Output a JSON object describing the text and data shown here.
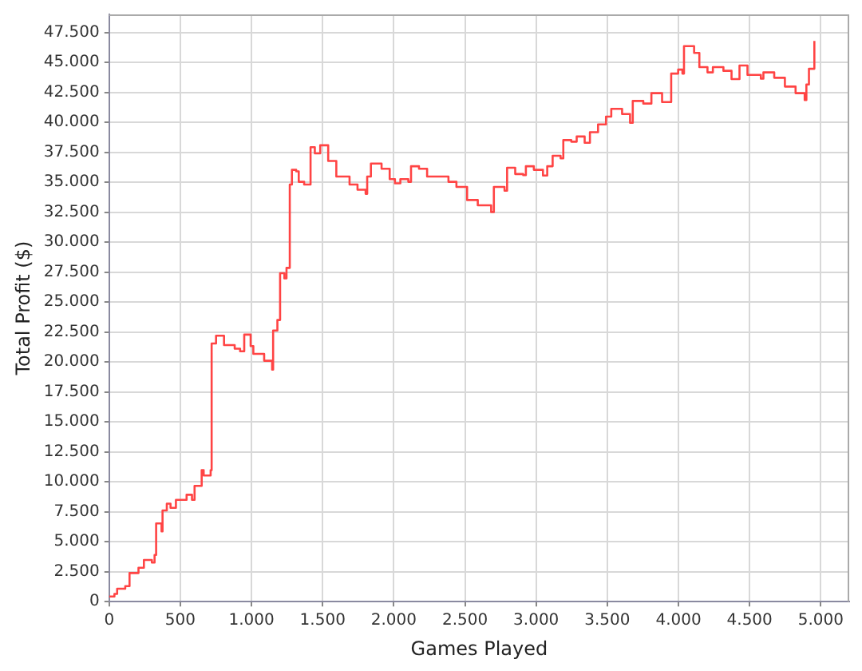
{
  "chart_data": {
    "type": "step",
    "xlabel": "Games Played",
    "ylabel": "Total Profit ($)",
    "xlim": [
      0,
      5200
    ],
    "ylim": [
      0,
      49000
    ],
    "xticks": [
      0,
      500,
      {
        "value": 1000,
        "label": "1.000"
      },
      {
        "value": 1500,
        "label": "1.500"
      },
      {
        "value": 2000,
        "label": "2.000"
      },
      {
        "value": 2500,
        "label": "2.500"
      },
      {
        "value": 3000,
        "label": "3.000"
      },
      {
        "value": 3500,
        "label": "3.500"
      },
      {
        "value": 4000,
        "label": "4.000"
      },
      {
        "value": 4500,
        "label": "4.500"
      },
      {
        "value": 5000,
        "label": "5.000"
      }
    ],
    "yticks": [
      0,
      {
        "value": 2500,
        "label": "2.500"
      },
      {
        "value": 5000,
        "label": "5.000"
      },
      {
        "value": 7500,
        "label": "7.500"
      },
      {
        "value": 10000,
        "label": "10.000"
      },
      {
        "value": 12500,
        "label": "12.500"
      },
      {
        "value": 15000,
        "label": "15.000"
      },
      {
        "value": 17500,
        "label": "17.500"
      },
      {
        "value": 20000,
        "label": "20.000"
      },
      {
        "value": 22500,
        "label": "22.500"
      },
      {
        "value": 25000,
        "label": "25.000"
      },
      {
        "value": 27500,
        "label": "27.500"
      },
      {
        "value": 30000,
        "label": "30.000"
      },
      {
        "value": 32500,
        "label": "32.500"
      },
      {
        "value": 35000,
        "label": "35.000"
      },
      {
        "value": 37500,
        "label": "37.500"
      },
      {
        "value": 40000,
        "label": "40.000"
      },
      {
        "value": 42500,
        "label": "42.500"
      },
      {
        "value": 45000,
        "label": "45.000"
      },
      {
        "value": 47500,
        "label": "47.500"
      }
    ],
    "grid": true,
    "legend": false,
    "marker": "none",
    "line_style": "solid",
    "series": [
      {
        "color": "#ff4444",
        "x": [
          0,
          37,
          56,
          113,
          143,
          206,
          244,
          300,
          319,
          330,
          368,
          375,
          405,
          431,
          469,
          544,
          582,
          600,
          650,
          664,
          713,
          720,
          751,
          807,
          882,
          920,
          949,
          994,
          1013,
          1089,
          1145,
          1152,
          1182,
          1201,
          1231,
          1246,
          1269,
          1284,
          1314,
          1332,
          1370,
          1408,
          1415,
          1445,
          1483,
          1539,
          1596,
          1652,
          1689,
          1745,
          1802,
          1813,
          1839,
          1914,
          1971,
          2008,
          2046,
          2102,
          2121,
          2177,
          2234,
          2327,
          2384,
          2440,
          2515,
          2590,
          2684,
          2703,
          2778,
          2796,
          2853,
          2909,
          2928,
          2984,
          3048,
          3078,
          3116,
          3172,
          3191,
          3247,
          3285,
          3341,
          3378,
          3435,
          3491,
          3528,
          3604,
          3660,
          3679,
          3753,
          3810,
          3885,
          3934,
          3949,
          3998,
          4028,
          4039,
          4110,
          4147,
          4204,
          4242,
          4316,
          4373,
          4422,
          4429,
          4485,
          4579,
          4597,
          4673,
          4748,
          4823,
          4887,
          4899,
          4917,
          4947,
          4955
        ],
        "values": [
          430,
          650,
          1080,
          1300,
          2390,
          2830,
          3480,
          3260,
          3900,
          6530,
          5870,
          7610,
          8180,
          7830,
          8490,
          8920,
          8490,
          9660,
          10970,
          10530,
          10970,
          21540,
          22190,
          21410,
          21110,
          20890,
          22280,
          21320,
          20670,
          20100,
          19360,
          22620,
          23500,
          27410,
          26980,
          27850,
          34800,
          36030,
          35900,
          35030,
          34800,
          34800,
          37920,
          37400,
          38080,
          36770,
          35470,
          35470,
          34800,
          34370,
          34030,
          35470,
          36550,
          36120,
          35250,
          34900,
          35250,
          35030,
          36330,
          36120,
          35470,
          35470,
          35030,
          34600,
          33510,
          33070,
          32510,
          34600,
          34290,
          36200,
          35680,
          35590,
          36330,
          36030,
          35550,
          36330,
          37200,
          36990,
          38510,
          38380,
          38810,
          38290,
          39170,
          39820,
          40470,
          41120,
          40690,
          39950,
          41780,
          41560,
          42430,
          41690,
          41690,
          44060,
          44390,
          44060,
          46350,
          45780,
          44600,
          44160,
          44600,
          44290,
          43600,
          43600,
          44730,
          43950,
          43640,
          44160,
          43710,
          42980,
          42430,
          41860,
          43150,
          44460,
          44460,
          46780
        ]
      }
    ]
  }
}
